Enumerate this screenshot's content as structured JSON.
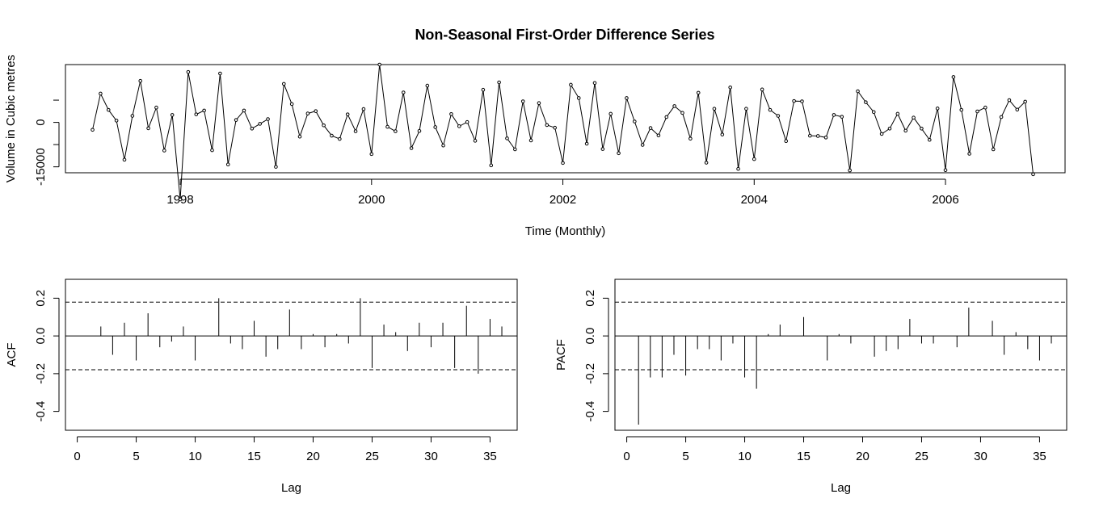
{
  "title": "Non-Seasonal First-Order Difference Series",
  "chart_data": [
    {
      "type": "line",
      "name": "time-series",
      "xlabel": "Time (Monthly)",
      "ylabel": "Volume in Cubic metres",
      "xlim": [
        1996.8,
        2007.25
      ],
      "ylim": [
        -17000,
        19500
      ],
      "x_ticks": [
        1998,
        2000,
        2002,
        2004,
        2006
      ],
      "y_ticks": [
        -15000,
        0
      ],
      "y_tick_labels": [
        "-15000",
        "0"
      ],
      "x_start": 1997.0833,
      "x_step": 0.083333,
      "values": [
        -2500,
        9700,
        4200,
        600,
        -12600,
        2200,
        14000,
        -2000,
        5000,
        -9500,
        2500,
        -26000,
        17000,
        2700,
        4000,
        -9400,
        16500,
        -14200,
        800,
        4000,
        -2100,
        -500,
        1100,
        -15000,
        13000,
        6200,
        -4800,
        3000,
        3800,
        -1000,
        -4500,
        -5600,
        2700,
        -3000,
        4500,
        -10700,
        19500,
        -1500,
        -3000,
        10100,
        -8700,
        -2900,
        12400,
        -1600,
        -7800,
        2800,
        -1300,
        100,
        -6200,
        11000,
        -14500,
        13500,
        -5400,
        -9100,
        7100,
        -6100,
        6500,
        -900,
        -1800,
        -13700,
        12700,
        8200,
        -7200,
        13300,
        -9000,
        2900,
        -10400,
        8200,
        300,
        -7600,
        -1900,
        -4400,
        1800,
        5500,
        3200,
        -5500,
        10000,
        -13600,
        4600,
        -4100,
        11800,
        -15700,
        4600,
        -12400,
        11100,
        4200,
        2200,
        -6300,
        7200,
        7100,
        -4500,
        -4600,
        -5100,
        2500,
        1900,
        -16200,
        10500,
        6800,
        3500,
        -3900,
        -2100,
        2900,
        -2800,
        1600,
        -2100,
        -5900,
        4700,
        -16100,
        15300,
        4200,
        -10600,
        3700,
        5000,
        -9100,
        1800,
        7500,
        4300,
        7000,
        -17500
      ]
    },
    {
      "type": "bar",
      "name": "acf",
      "xlabel": "Lag",
      "ylabel": "ACF",
      "xlim": [
        -1,
        37.3
      ],
      "ylim": [
        -0.5,
        0.3
      ],
      "x_ticks": [
        0,
        5,
        10,
        15,
        20,
        25,
        30,
        35
      ],
      "y_ticks": [
        -0.4,
        -0.2,
        0.0,
        0.2
      ],
      "y_tick_labels": [
        "-0.4",
        "-0.2",
        "0.0",
        "0.2"
      ],
      "confidence_limit": 0.179,
      "lags": [
        1,
        2,
        3,
        4,
        5,
        6,
        7,
        8,
        9,
        10,
        11,
        12,
        13,
        14,
        15,
        16,
        17,
        18,
        19,
        20,
        21,
        22,
        23,
        24,
        25,
        26,
        27,
        28,
        29,
        30,
        31,
        32,
        33,
        34,
        35,
        36
      ],
      "values": [
        0.0,
        0.05,
        -0.1,
        0.07,
        -0.13,
        0.12,
        -0.06,
        -0.03,
        0.05,
        -0.13,
        0.0,
        0.2,
        -0.04,
        -0.07,
        0.08,
        -0.11,
        -0.07,
        0.14,
        -0.07,
        0.01,
        -0.06,
        0.01,
        -0.04,
        0.2,
        -0.17,
        0.06,
        0.02,
        -0.08,
        0.07,
        -0.06,
        0.07,
        -0.17,
        0.16,
        -0.2,
        0.09,
        0.05
      ]
    },
    {
      "type": "bar",
      "name": "pacf",
      "xlabel": "Lag",
      "ylabel": "PACF",
      "xlim": [
        -1,
        37.3
      ],
      "ylim": [
        -0.5,
        0.3
      ],
      "x_ticks": [
        0,
        5,
        10,
        15,
        20,
        25,
        30,
        35
      ],
      "y_ticks": [
        -0.4,
        -0.2,
        0.0,
        0.2
      ],
      "y_tick_labels": [
        "-0.4",
        "-0.2",
        "0.0",
        "0.2"
      ],
      "confidence_limit": 0.179,
      "lags": [
        1,
        2,
        3,
        4,
        5,
        6,
        7,
        8,
        9,
        10,
        11,
        12,
        13,
        14,
        15,
        16,
        17,
        18,
        19,
        20,
        21,
        22,
        23,
        24,
        25,
        26,
        27,
        28,
        29,
        30,
        31,
        32,
        33,
        34,
        35,
        36
      ],
      "values": [
        -0.47,
        -0.22,
        -0.22,
        -0.1,
        -0.21,
        -0.07,
        -0.07,
        -0.13,
        -0.04,
        -0.22,
        -0.28,
        0.01,
        0.06,
        0.0,
        0.1,
        0.0,
        -0.13,
        0.01,
        -0.04,
        0.0,
        -0.11,
        -0.08,
        -0.07,
        0.09,
        -0.04,
        -0.04,
        0.0,
        -0.06,
        0.15,
        0.0,
        0.08,
        -0.1,
        0.02,
        -0.07,
        -0.13,
        -0.04
      ]
    }
  ]
}
